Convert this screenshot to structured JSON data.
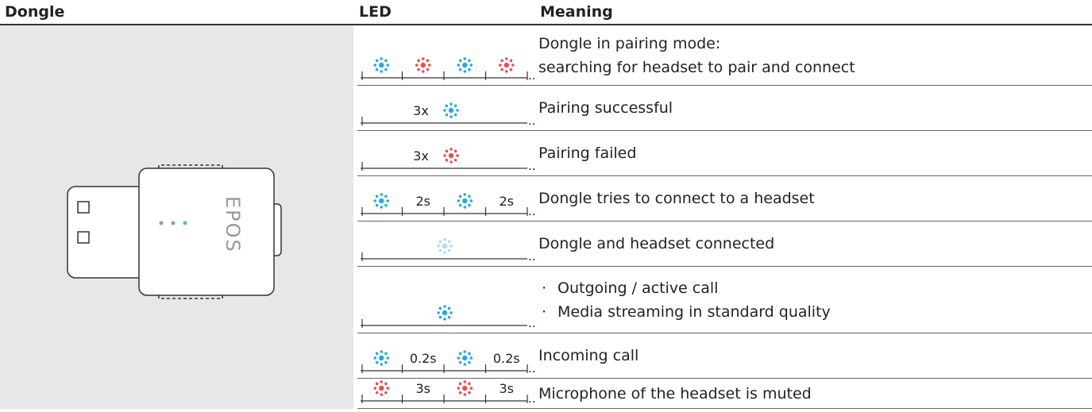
{
  "header": {
    "dongle": "Dongle",
    "led": "LED",
    "meaning": "Meaning"
  },
  "dongle": {
    "logo": "EPOS"
  },
  "rows": [
    {
      "led": [],
      "meaning": [
        "Dongle in pairing mode:",
        "searching for headset to pair and connect"
      ]
    },
    {
      "led": [
        "3x"
      ],
      "meaning": [
        "Pairing successful"
      ]
    },
    {
      "led": [
        "3x"
      ],
      "meaning": [
        "Pairing failed"
      ]
    },
    {
      "led": [
        "2s",
        "2s"
      ],
      "meaning": [
        "Dongle tries to connect to a headset"
      ]
    },
    {
      "led": [],
      "meaning": [
        "Dongle and headset connected"
      ]
    },
    {
      "led": [],
      "meaning": [
        "Outgoing / active call",
        "Media streaming in standard quality"
      ]
    },
    {
      "led": [
        "0.2s",
        "0.2s"
      ],
      "meaning": [
        "Incoming call"
      ]
    },
    {
      "led": [
        "3s",
        "3s"
      ],
      "meaning": [
        "Microphone of the headset is muted"
      ]
    }
  ]
}
